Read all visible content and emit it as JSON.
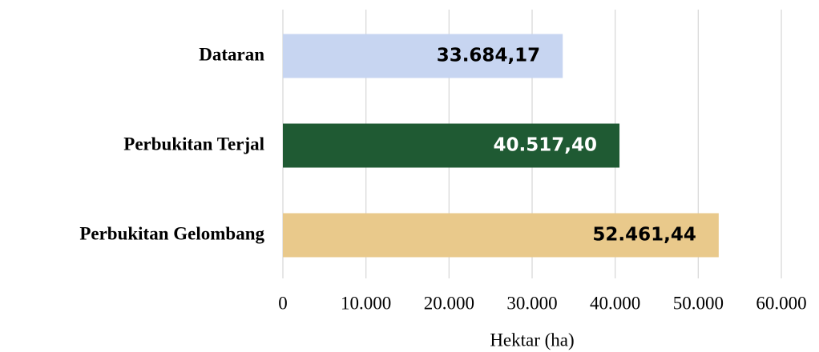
{
  "chart_data": {
    "type": "hbar",
    "categories": [
      "Dataran",
      "Perbukitan Terjal",
      "Perbukitan Gelombang"
    ],
    "values": [
      33684.17,
      40517.4,
      52461.44
    ],
    "value_labels": [
      "33.684,17",
      "40.517,40",
      "52.461,44"
    ],
    "colors": [
      "#c7d5f1",
      "#1f5a33",
      "#e9c98b"
    ],
    "xlabel": "Hektar (ha)",
    "xlim": [
      0,
      60000
    ],
    "xticks": [
      0,
      {
        "value": 10000,
        "label": "10.000"
      },
      {
        "value": 20000,
        "label": "20.000"
      },
      {
        "value": 30000,
        "label": "30.000"
      },
      {
        "value": 40000,
        "label": "40.000"
      },
      {
        "value": 50000,
        "label": "50.000"
      },
      {
        "value": 60000,
        "label": "60.000"
      }
    ],
    "grid": true
  }
}
